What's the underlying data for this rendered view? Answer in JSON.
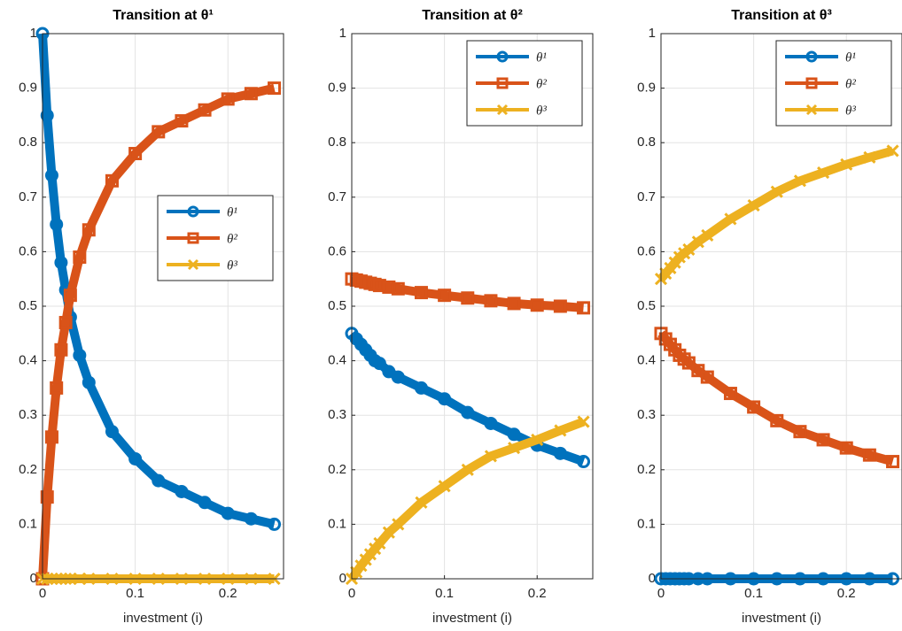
{
  "chart_data": [
    {
      "type": "line",
      "title": "Transition at θ¹",
      "xlabel": "investment (i)",
      "x": [
        0,
        0.005,
        0.01,
        0.015,
        0.02,
        0.025,
        0.03,
        0.04,
        0.05,
        0.075,
        0.1,
        0.125,
        0.15,
        0.175,
        0.2,
        0.225,
        0.25
      ],
      "xlim": [
        0,
        0.26
      ],
      "xticks": [
        0,
        0.1,
        0.2
      ],
      "ylim": [
        0,
        1
      ],
      "yticks": [
        0,
        0.1,
        0.2,
        0.3,
        0.4,
        0.5,
        0.6,
        0.7,
        0.8,
        0.9,
        1
      ],
      "grid": true,
      "legend": "east",
      "series": [
        {
          "name": "θ¹",
          "color": "#0072BD",
          "marker": "o",
          "values": [
            1,
            0.85,
            0.74,
            0.65,
            0.58,
            0.53,
            0.48,
            0.41,
            0.36,
            0.27,
            0.22,
            0.18,
            0.16,
            0.14,
            0.12,
            0.11,
            0.1
          ]
        },
        {
          "name": "θ²",
          "color": "#D95319",
          "marker": "s",
          "values": [
            0,
            0.15,
            0.26,
            0.35,
            0.42,
            0.47,
            0.52,
            0.59,
            0.64,
            0.73,
            0.78,
            0.82,
            0.84,
            0.86,
            0.88,
            0.89,
            0.9
          ]
        },
        {
          "name": "θ³",
          "color": "#EDB120",
          "marker": "x",
          "values": [
            0,
            0,
            0,
            0,
            0,
            0,
            0,
            0,
            0,
            0,
            0,
            0,
            0,
            0,
            0,
            0,
            0
          ]
        }
      ]
    },
    {
      "type": "line",
      "title": "Transition at θ²",
      "xlabel": "investment (i)",
      "x": [
        0,
        0.005,
        0.01,
        0.015,
        0.02,
        0.025,
        0.03,
        0.04,
        0.05,
        0.075,
        0.1,
        0.125,
        0.15,
        0.175,
        0.2,
        0.225,
        0.25
      ],
      "xlim": [
        0,
        0.26
      ],
      "xticks": [
        0,
        0.1,
        0.2
      ],
      "ylim": [
        0,
        1
      ],
      "yticks": [
        0,
        0.1,
        0.2,
        0.3,
        0.4,
        0.5,
        0.6,
        0.7,
        0.8,
        0.9,
        1
      ],
      "grid": true,
      "legend": "northeast",
      "series": [
        {
          "name": "θ¹",
          "color": "#0072BD",
          "marker": "o",
          "values": [
            0.45,
            0.44,
            0.43,
            0.42,
            0.41,
            0.4,
            0.395,
            0.38,
            0.37,
            0.35,
            0.33,
            0.305,
            0.285,
            0.265,
            0.245,
            0.23,
            0.215
          ]
        },
        {
          "name": "θ²",
          "color": "#D95319",
          "marker": "s",
          "values": [
            0.55,
            0.548,
            0.546,
            0.544,
            0.542,
            0.54,
            0.538,
            0.535,
            0.532,
            0.525,
            0.52,
            0.515,
            0.51,
            0.505,
            0.502,
            0.5,
            0.497
          ]
        },
        {
          "name": "θ³",
          "color": "#EDB120",
          "marker": "x",
          "values": [
            0,
            0.012,
            0.024,
            0.035,
            0.045,
            0.055,
            0.065,
            0.085,
            0.1,
            0.14,
            0.17,
            0.2,
            0.225,
            0.24,
            0.255,
            0.272,
            0.288
          ]
        }
      ]
    },
    {
      "type": "line",
      "title": "Transition at θ³",
      "xlabel": "investment (i)",
      "x": [
        0,
        0.005,
        0.01,
        0.015,
        0.02,
        0.025,
        0.03,
        0.04,
        0.05,
        0.075,
        0.1,
        0.125,
        0.15,
        0.175,
        0.2,
        0.225,
        0.25
      ],
      "xlim": [
        0,
        0.26
      ],
      "xticks": [
        0,
        0.1,
        0.2
      ],
      "ylim": [
        0,
        1
      ],
      "yticks": [
        0,
        0.1,
        0.2,
        0.3,
        0.4,
        0.5,
        0.6,
        0.7,
        0.8,
        0.9,
        1
      ],
      "grid": true,
      "legend": "northeast",
      "series": [
        {
          "name": "θ¹",
          "color": "#0072BD",
          "marker": "o",
          "values": [
            0,
            0,
            0,
            0,
            0,
            0,
            0,
            0,
            0,
            0,
            0,
            0,
            0,
            0,
            0,
            0,
            0
          ]
        },
        {
          "name": "θ²",
          "color": "#D95319",
          "marker": "s",
          "values": [
            0.45,
            0.44,
            0.43,
            0.42,
            0.41,
            0.403,
            0.396,
            0.382,
            0.37,
            0.34,
            0.315,
            0.29,
            0.27,
            0.255,
            0.24,
            0.227,
            0.215
          ]
        },
        {
          "name": "θ³",
          "color": "#EDB120",
          "marker": "x",
          "values": [
            0.55,
            0.56,
            0.57,
            0.58,
            0.59,
            0.597,
            0.604,
            0.618,
            0.63,
            0.66,
            0.685,
            0.71,
            0.73,
            0.745,
            0.76,
            0.773,
            0.785
          ]
        }
      ]
    }
  ]
}
